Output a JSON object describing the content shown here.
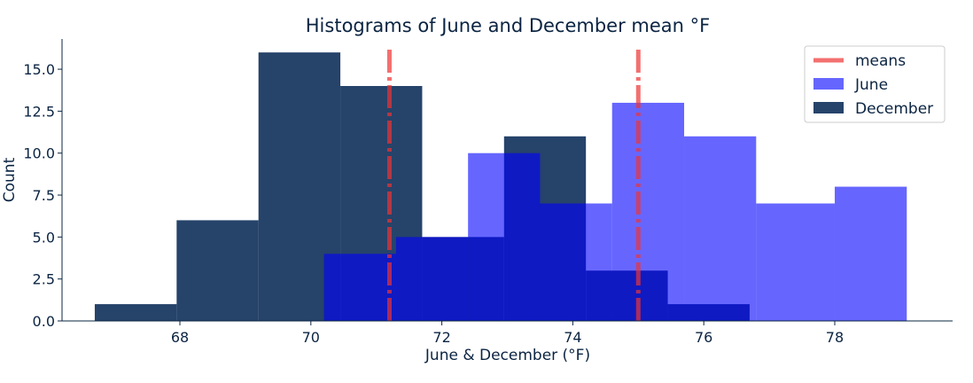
{
  "chart_data": {
    "type": "histogram",
    "title": "Histograms of June and December mean °F",
    "xlabel": "June & December (°F)",
    "ylabel": "Count",
    "xlim": [
      66.2,
      79.8
    ],
    "ylim": [
      0,
      16.8
    ],
    "xticks": [
      68,
      70,
      72,
      74,
      76,
      78
    ],
    "yticks": [
      0.0,
      2.5,
      5.0,
      7.5,
      10.0,
      12.5,
      15.0
    ],
    "ytick_labels": [
      "0.0",
      "2.5",
      "5.0",
      "7.5",
      "10.0",
      "12.5",
      "15.0"
    ],
    "grid": false,
    "legend_position": "top-right",
    "legend": [
      "means",
      "June",
      "December"
    ],
    "series": [
      {
        "name": "June",
        "color": "#0000ff",
        "opacity": 0.6,
        "bins": [
          {
            "x0": 70.2,
            "x1": 71.3,
            "count": 4
          },
          {
            "x0": 71.3,
            "x1": 72.4,
            "count": 5
          },
          {
            "x0": 72.4,
            "x1": 73.5,
            "count": 10
          },
          {
            "x0": 73.5,
            "x1": 74.6,
            "count": 7
          },
          {
            "x0": 74.6,
            "x1": 75.7,
            "count": 13
          },
          {
            "x0": 75.7,
            "x1": 76.8,
            "count": 11
          },
          {
            "x0": 76.8,
            "x1": 78.0,
            "count": 7
          },
          {
            "x0": 78.0,
            "x1": 79.1,
            "count": 8
          }
        ]
      },
      {
        "name": "December",
        "color": "#022452",
        "opacity": 0.86,
        "bins": [
          {
            "x0": 66.7,
            "x1": 67.95,
            "count": 1
          },
          {
            "x0": 67.95,
            "x1": 69.2,
            "count": 6
          },
          {
            "x0": 69.2,
            "x1": 70.45,
            "count": 16
          },
          {
            "x0": 70.45,
            "x1": 71.7,
            "count": 14
          },
          {
            "x0": 71.7,
            "x1": 72.95,
            "count": 5
          },
          {
            "x0": 72.95,
            "x1": 74.2,
            "count": 11
          },
          {
            "x0": 74.2,
            "x1": 75.45,
            "count": 3
          },
          {
            "x0": 75.45,
            "x1": 76.7,
            "count": 1
          }
        ]
      }
    ],
    "means": {
      "name": "means",
      "color": "#ee3333",
      "values": [
        71.2,
        75.0
      ]
    }
  }
}
